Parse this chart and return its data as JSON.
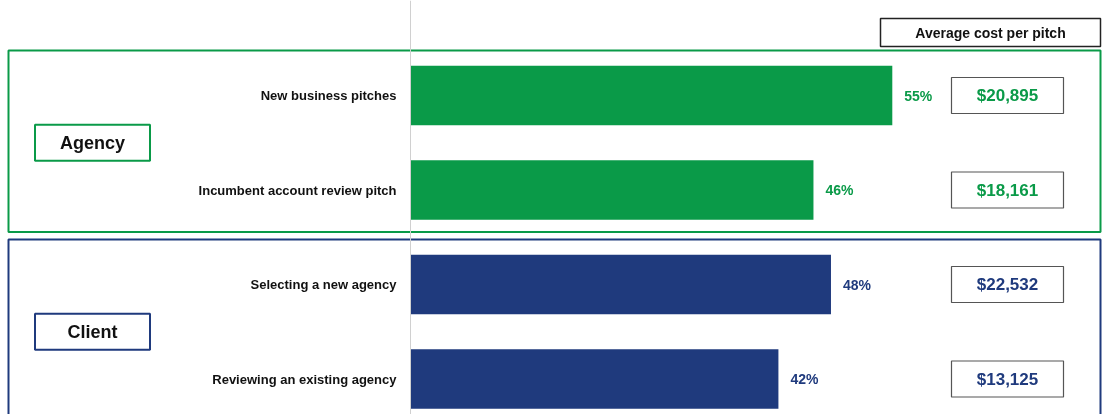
{
  "chart_data": {
    "type": "bar",
    "orientation": "horizontal",
    "categories": [
      "New business pitches",
      "Incumbent account review pitch",
      "Selecting a new agency",
      "Reviewing an existing agency"
    ],
    "values": [
      55,
      46,
      48,
      42
    ],
    "colors": [
      "#0a9a48",
      "#0a9a48",
      "#1f3a7d",
      "#1f3a7d"
    ],
    "value_labels": [
      "55%",
      "46%",
      "48%",
      "42%"
    ],
    "grid": false,
    "annotations": [
      "Average cost per pitch",
      "Agency",
      "Client",
      "$20,895",
      "$18,161",
      "$22,532",
      "$13,125"
    ]
  }
}
